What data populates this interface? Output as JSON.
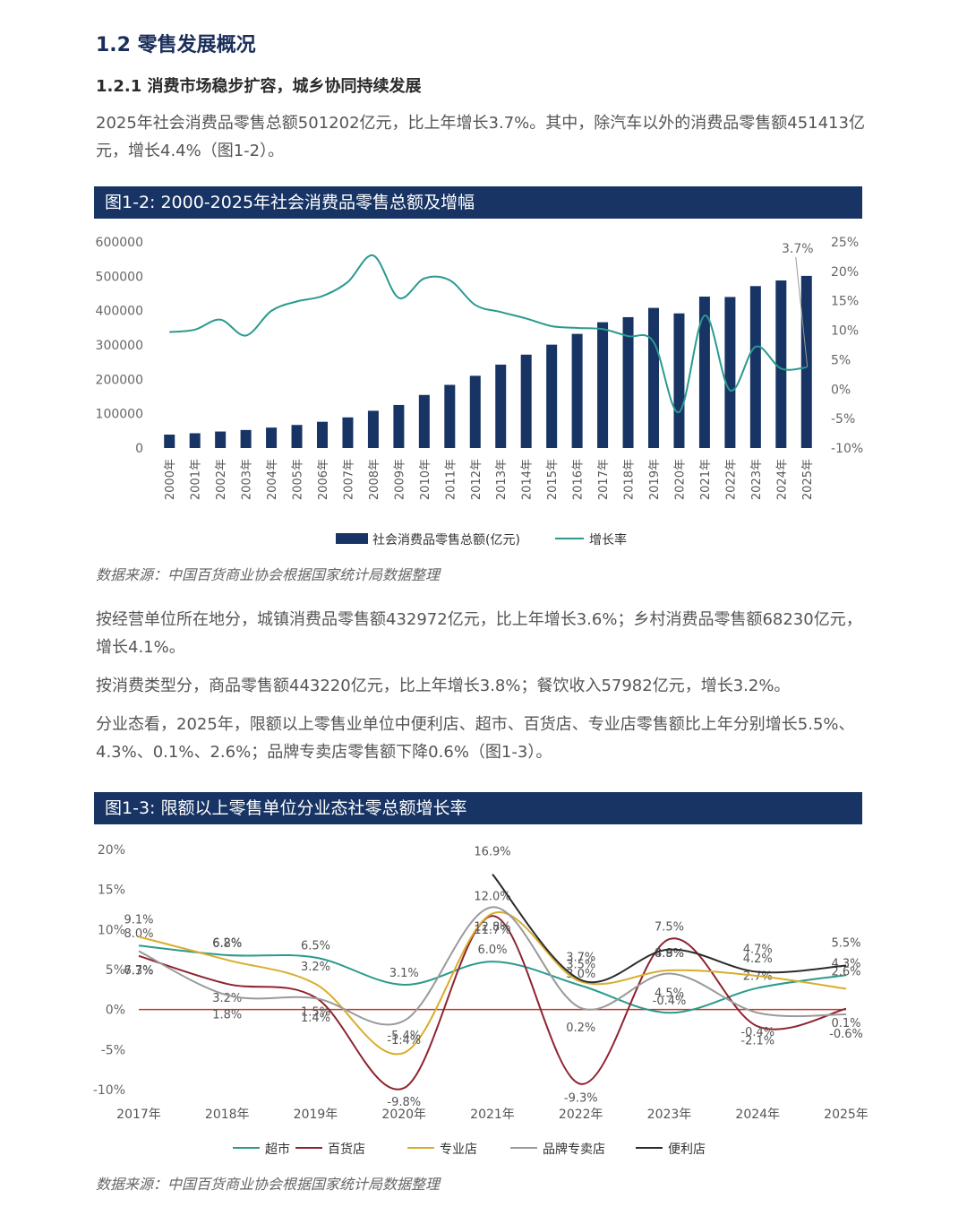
{
  "section_title": "1.2 零售发展概况",
  "subsection_title": "1.2.1 消费市场稳步扩容，城乡协同持续发展",
  "paragraphs": {
    "p1": "2025年社会消费品零售总额501202亿元，比上年增长3.7%。其中，除汽车以外的消费品零售额451413亿元，增长4.4%（图1-2）。",
    "p2": "按经营单位所在地分，城镇消费品零售额432972亿元，比上年增长3.6%；乡村消费品零售额68230亿元，增长4.1%。",
    "p3": "按消费类型分，商品零售额443220亿元，比上年增长3.8%；餐饮收入57982亿元，增长3.2%。",
    "p4": "分业态看，2025年，限额以上零售业单位中便利店、超市、百货店、专业店零售额比上年分别增长5.5%、4.3%、0.1%、2.6%；品牌专卖店零售额下降0.6%（图1-3）。"
  },
  "figure1": {
    "header": "图1-2: 2000-2025年社会消费品零售总额及增幅",
    "source": "数据来源：中国百货商业协会根据国家统计局数据整理"
  },
  "figure2": {
    "header": "图1-3: 限额以上零售单位分业态社零总额增长率",
    "source": "数据来源：中国百货商业协会根据国家统计局数据整理"
  },
  "colors": {
    "bar": "#173464",
    "growth_line": "#2a9a8e",
    "supermarket": "#2a9a8e",
    "department": "#8e2430",
    "specialty": "#d9ad2c",
    "brand": "#9a9a9a",
    "convenience": "#2b2b2b",
    "zero_line": "#c0392b"
  },
  "chart_data": [
    {
      "type": "bar",
      "title": "图1-2: 2000-2025年社会消费品零售总额及增幅",
      "categories": [
        "2000年",
        "2001年",
        "2002年",
        "2003年",
        "2004年",
        "2005年",
        "2006年",
        "2007年",
        "2008年",
        "2009年",
        "2010年",
        "2011年",
        "2012年",
        "2013年",
        "2014年",
        "2015年",
        "2016年",
        "2017年",
        "2018年",
        "2019年",
        "2020年",
        "2021年",
        "2022年",
        "2023年",
        "2024年",
        "2025年"
      ],
      "series": [
        {
          "name": "社会消费品零售总额(亿元)",
          "type": "bar",
          "axis": "left",
          "values": [
            39106,
            43055,
            48136,
            52516,
            59501,
            67177,
            76410,
            89210,
            108488,
            125343,
            154554,
            183919,
            210307,
            242843,
            271896,
            300931,
            332316,
            366262,
            380987,
            408017,
            391981,
            440823,
            439733,
            471495,
            487895,
            501202
          ]
        },
        {
          "name": "增长率",
          "type": "line",
          "axis": "right",
          "values": [
            9.7,
            10.1,
            11.8,
            9.1,
            13.3,
            14.9,
            15.8,
            18.2,
            22.7,
            15.5,
            18.8,
            18.5,
            14.3,
            13.1,
            12.0,
            10.7,
            10.4,
            10.2,
            9.0,
            8.0,
            -3.9,
            12.5,
            -0.2,
            7.2,
            3.5,
            3.7
          ]
        }
      ],
      "y_left": {
        "min": 0,
        "max": 600000,
        "ticks": [
          "0",
          "100000",
          "200000",
          "300000",
          "400000",
          "500000",
          "600000"
        ]
      },
      "y_right": {
        "min": -10,
        "max": 25,
        "ticks": [
          "-10%",
          "-5%",
          "0%",
          "5%",
          "10%",
          "15%",
          "20%",
          "25%"
        ]
      },
      "annotation": "3.7%",
      "legend": [
        "社会消费品零售总额(亿元)",
        "增长率"
      ],
      "legend_position": "bottom"
    },
    {
      "type": "line",
      "title": "图1-3: 限额以上零售单位分业态社零总额增长率",
      "categories": [
        "2017年",
        "2018年",
        "2019年",
        "2020年",
        "2021年",
        "2022年",
        "2023年",
        "2024年",
        "2025年"
      ],
      "series": [
        {
          "name": "超市",
          "values": [
            8.0,
            6.8,
            6.5,
            3.1,
            6.0,
            3.0,
            -0.4,
            2.7,
            4.3
          ],
          "labels": [
            "8.0%",
            "6.8%",
            "6.5%",
            "3.1%",
            "6.0%",
            "3.0%",
            "-0.4%",
            "2.7%",
            "4.3%"
          ]
        },
        {
          "name": "百货店",
          "values": [
            6.7,
            3.2,
            1.5,
            -9.8,
            11.7,
            -9.3,
            8.8,
            -2.1,
            0.1
          ],
          "labels": [
            "6.7%",
            "3.2%",
            "1.5%",
            "-9.8%",
            "11.7%",
            "-9.3%",
            "8.8%",
            "-2.1%",
            "0.1%"
          ]
        },
        {
          "name": "专业店",
          "values": [
            9.1,
            6.2,
            3.2,
            -5.4,
            12.0,
            3.5,
            4.9,
            4.2,
            2.6
          ],
          "labels": [
            "9.1%",
            "6.2%",
            "3.2%",
            "-5.4%",
            "12.0%",
            "3.5%",
            "4.9%",
            "4.2%",
            "2.6%"
          ]
        },
        {
          "name": "品牌专卖店",
          "values": [
            7.3,
            1.8,
            1.4,
            -1.4,
            12.8,
            0.2,
            4.5,
            -0.4,
            -0.6
          ],
          "labels": [
            "7.3%",
            "1.8%",
            "1.4%",
            "-1.4%",
            "12.8%",
            "0.2%",
            "4.5%",
            "-0.4%",
            "-0.6%"
          ]
        },
        {
          "name": "便利店",
          "values": [
            null,
            null,
            null,
            null,
            16.9,
            3.7,
            7.5,
            4.7,
            5.5
          ],
          "labels": [
            "",
            "",
            "",
            "",
            "16.9%",
            "3.7%",
            "7.5%",
            "4.7%",
            "5.5%"
          ]
        }
      ],
      "ylim": [
        -10,
        20
      ],
      "y_ticks": [
        "-10%",
        "-5%",
        "0%",
        "5%",
        "10%",
        "15%",
        "20%"
      ],
      "legend": [
        "超市",
        "百货店",
        "专业店",
        "品牌专卖店",
        "便利店"
      ],
      "legend_position": "bottom"
    }
  ]
}
